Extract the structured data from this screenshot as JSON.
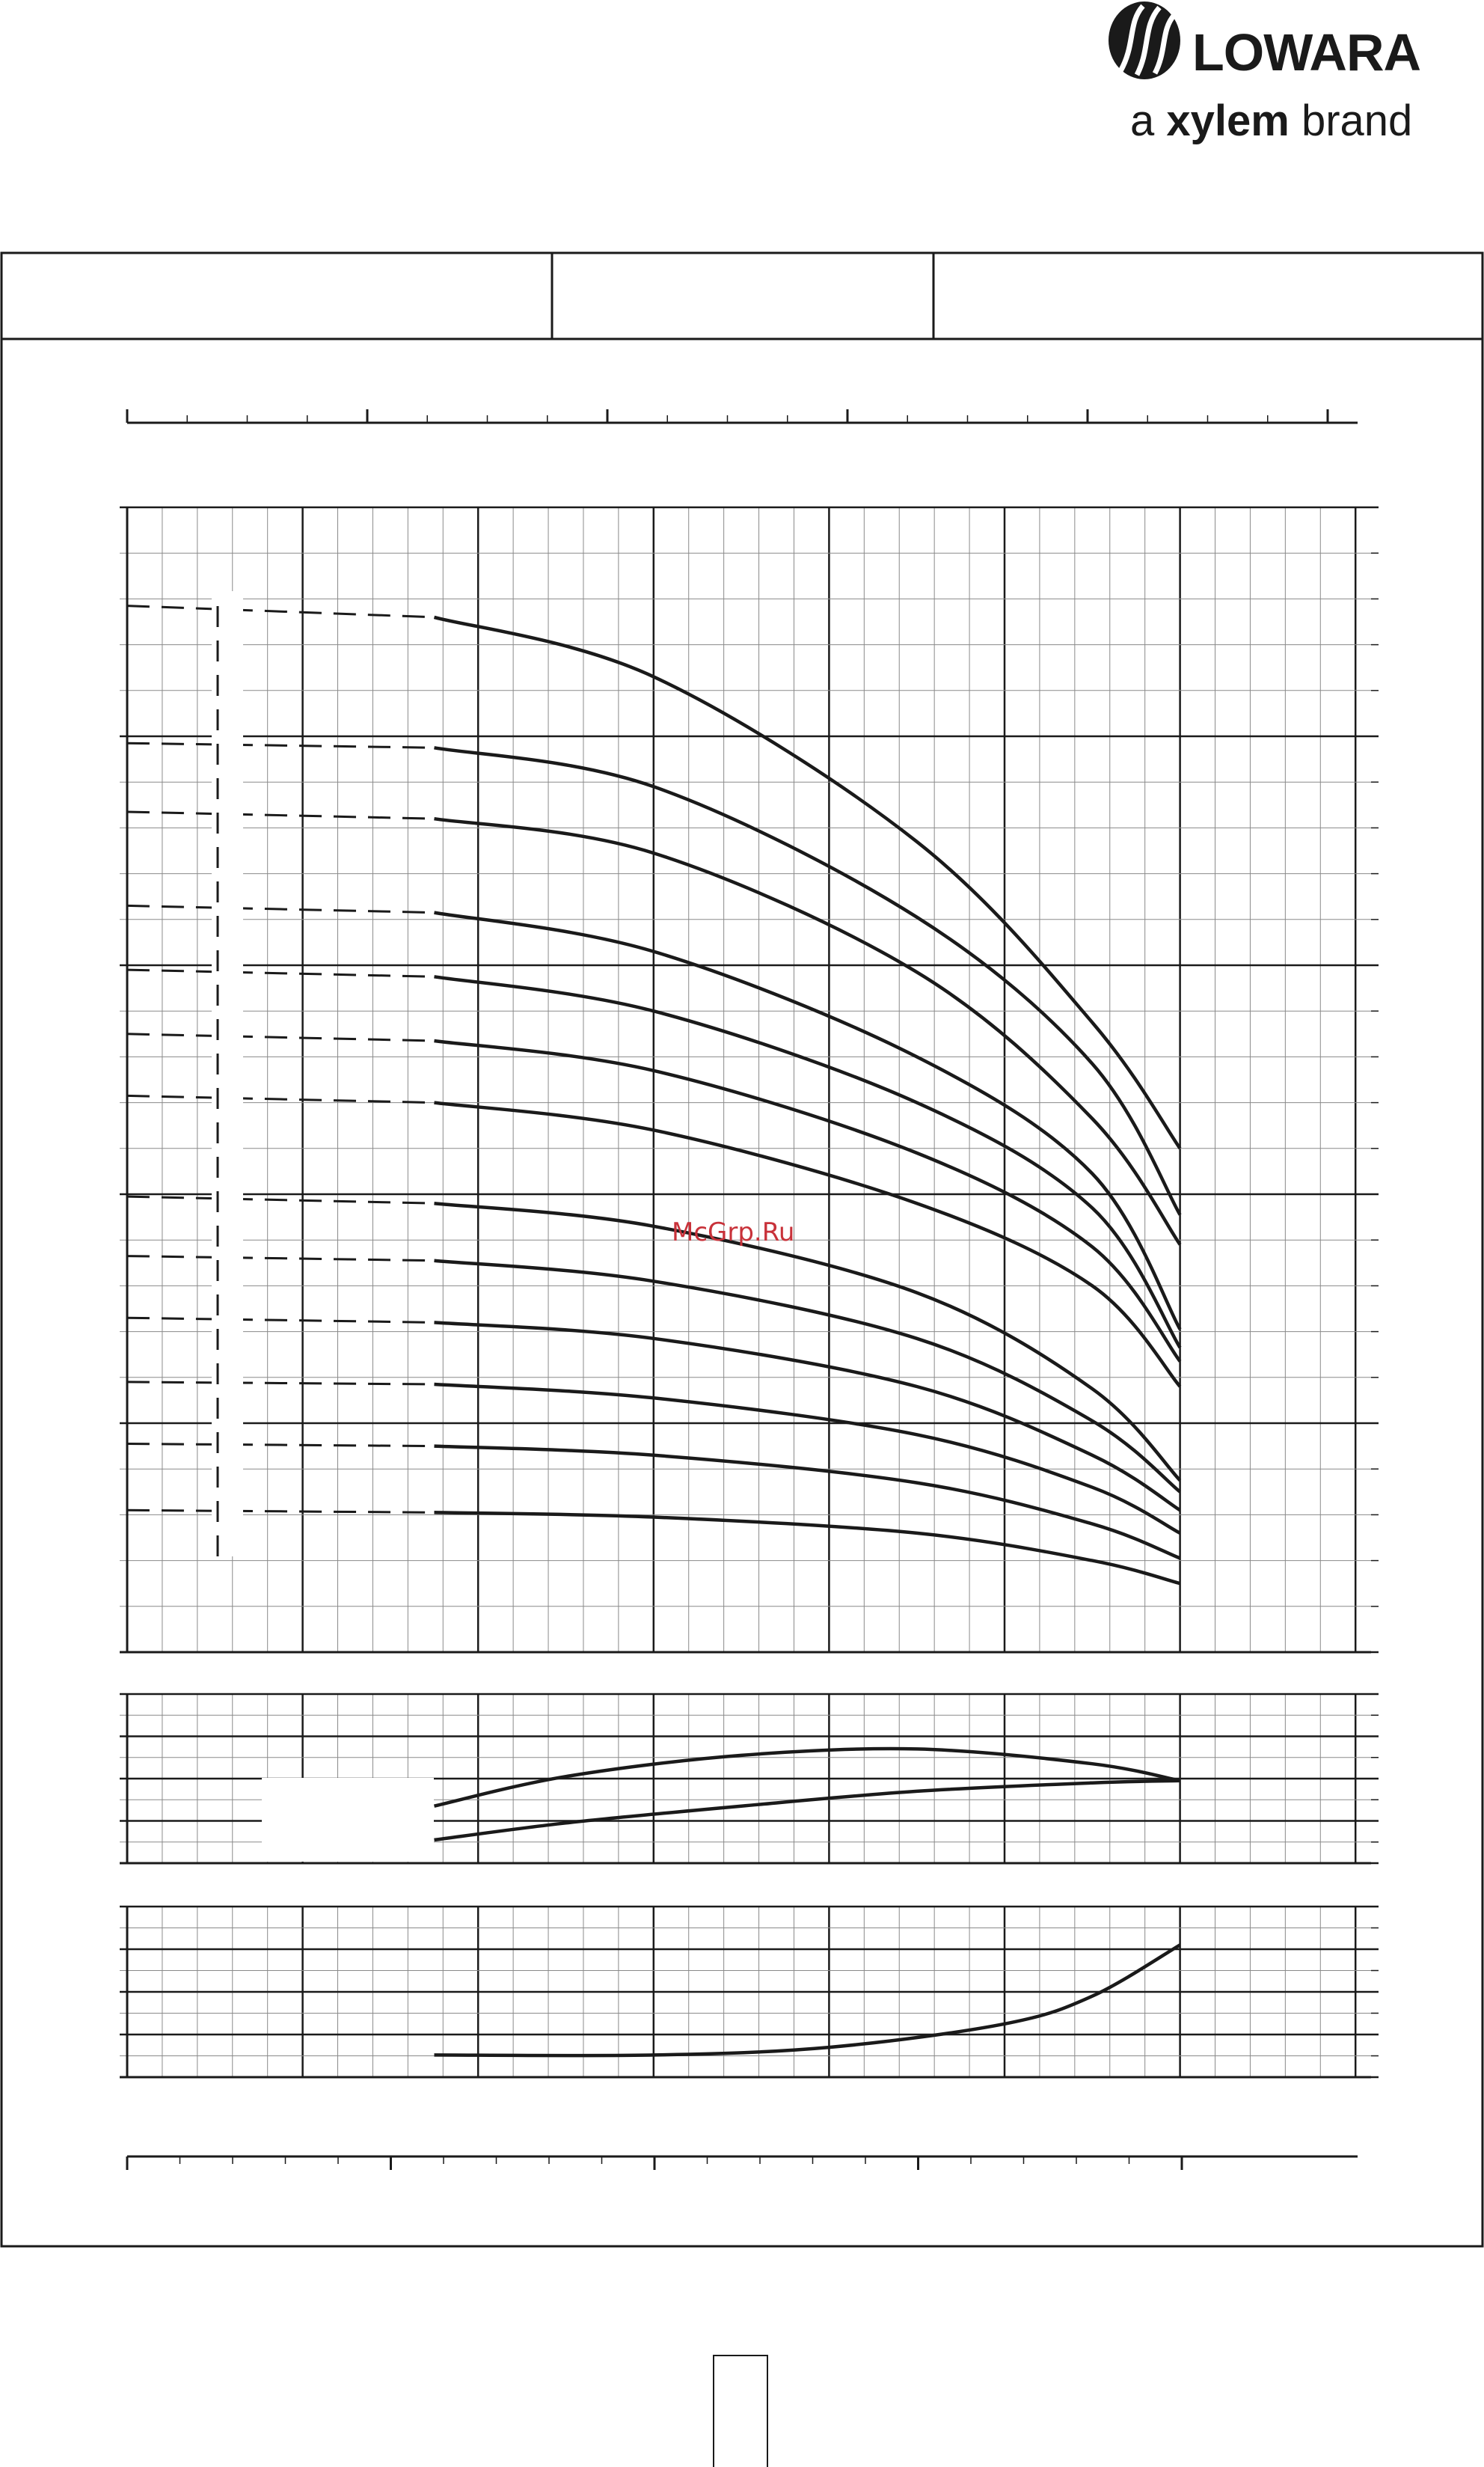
{
  "brand": {
    "logo_icon": "lowara-drop-logo",
    "name": "LOWARA",
    "tagline_prefix": "a ",
    "tagline_brand": "xylem",
    "tagline_suffix": " brand"
  },
  "header_cells": [
    "",
    "",
    ""
  ],
  "watermark": "McGrp.Ru",
  "page_number": "",
  "colors": {
    "ink": "#1a1a1a",
    "grid": "#8a8a8a",
    "watermark": "#c8323a"
  },
  "chart_data": [
    {
      "name": "head-curves",
      "type": "line",
      "xlim": [
        0,
        7
      ],
      "ylim": [
        0,
        5
      ],
      "grid": true,
      "dashed_until_x": 1.75,
      "series": [
        {
          "x": [
            0,
            1.75,
            3,
            4.5,
            5.5,
            6
          ],
          "y": [
            4.57,
            4.52,
            4.26,
            3.54,
            2.75,
            2.2
          ]
        },
        {
          "x": [
            0,
            1.75,
            3,
            4.5,
            5.5,
            6
          ],
          "y": [
            3.97,
            3.95,
            3.78,
            3.21,
            2.57,
            1.91
          ]
        },
        {
          "x": [
            0,
            1.75,
            3,
            4.5,
            5.5,
            6
          ],
          "y": [
            3.67,
            3.64,
            3.49,
            2.97,
            2.33,
            1.78
          ]
        },
        {
          "x": [
            0,
            1.75,
            3,
            4.5,
            5.5,
            6
          ],
          "y": [
            3.26,
            3.23,
            3.06,
            2.6,
            2.09,
            1.41
          ]
        },
        {
          "x": [
            0,
            1.75,
            3,
            4.5,
            5.5,
            6
          ],
          "y": [
            2.98,
            2.95,
            2.8,
            2.4,
            1.94,
            1.33
          ]
        },
        {
          "x": [
            0,
            1.75,
            3,
            4.5,
            5.5,
            6
          ],
          "y": [
            2.7,
            2.67,
            2.54,
            2.18,
            1.77,
            1.27
          ]
        },
        {
          "x": [
            0,
            1.75,
            3,
            4.5,
            5.5,
            6
          ],
          "y": [
            2.43,
            2.4,
            2.28,
            1.96,
            1.6,
            1.16
          ]
        },
        {
          "x": [
            0,
            1.75,
            3,
            4.5,
            5.5,
            6
          ],
          "y": [
            1.99,
            1.96,
            1.86,
            1.57,
            1.15,
            0.75
          ]
        },
        {
          "x": [
            0,
            1.75,
            3,
            4.5,
            5.5,
            6
          ],
          "y": [
            1.73,
            1.71,
            1.62,
            1.37,
            1.01,
            0.7
          ]
        },
        {
          "x": [
            0,
            1.75,
            3,
            4.5,
            5.5,
            6
          ],
          "y": [
            1.46,
            1.44,
            1.37,
            1.16,
            0.86,
            0.62
          ]
        },
        {
          "x": [
            0,
            1.75,
            3,
            4.5,
            5.5,
            6
          ],
          "y": [
            1.18,
            1.17,
            1.11,
            0.95,
            0.72,
            0.52
          ]
        },
        {
          "x": [
            0,
            1.75,
            3,
            4.5,
            5.5,
            6
          ],
          "y": [
            0.91,
            0.9,
            0.86,
            0.74,
            0.56,
            0.41
          ]
        },
        {
          "x": [
            0,
            1.75,
            3,
            4.5,
            5.5,
            6
          ],
          "y": [
            0.62,
            0.61,
            0.59,
            0.52,
            0.4,
            0.3
          ]
        }
      ]
    },
    {
      "name": "efficiency-curves",
      "type": "line",
      "xlim": [
        0,
        7
      ],
      "ylim": [
        0,
        4
      ],
      "grid": true,
      "series": [
        {
          "x": [
            1.75,
            2.5,
            3.5,
            4.5,
            5.5,
            6
          ],
          "y": [
            1.35,
            2.05,
            2.55,
            2.7,
            2.35,
            1.95
          ]
        },
        {
          "x": [
            1.75,
            2.5,
            3.5,
            4.5,
            5.5,
            6
          ],
          "y": [
            0.55,
            0.95,
            1.35,
            1.7,
            1.9,
            1.95
          ]
        }
      ]
    },
    {
      "name": "npsh-curve",
      "type": "line",
      "xlim": [
        0,
        7
      ],
      "ylim": [
        0,
        4
      ],
      "grid": true,
      "series": [
        {
          "x": [
            1.75,
            3,
            4,
            5,
            5.5,
            6
          ],
          "y": [
            0.52,
            0.52,
            0.7,
            1.25,
            1.9,
            3.1
          ]
        }
      ]
    }
  ]
}
